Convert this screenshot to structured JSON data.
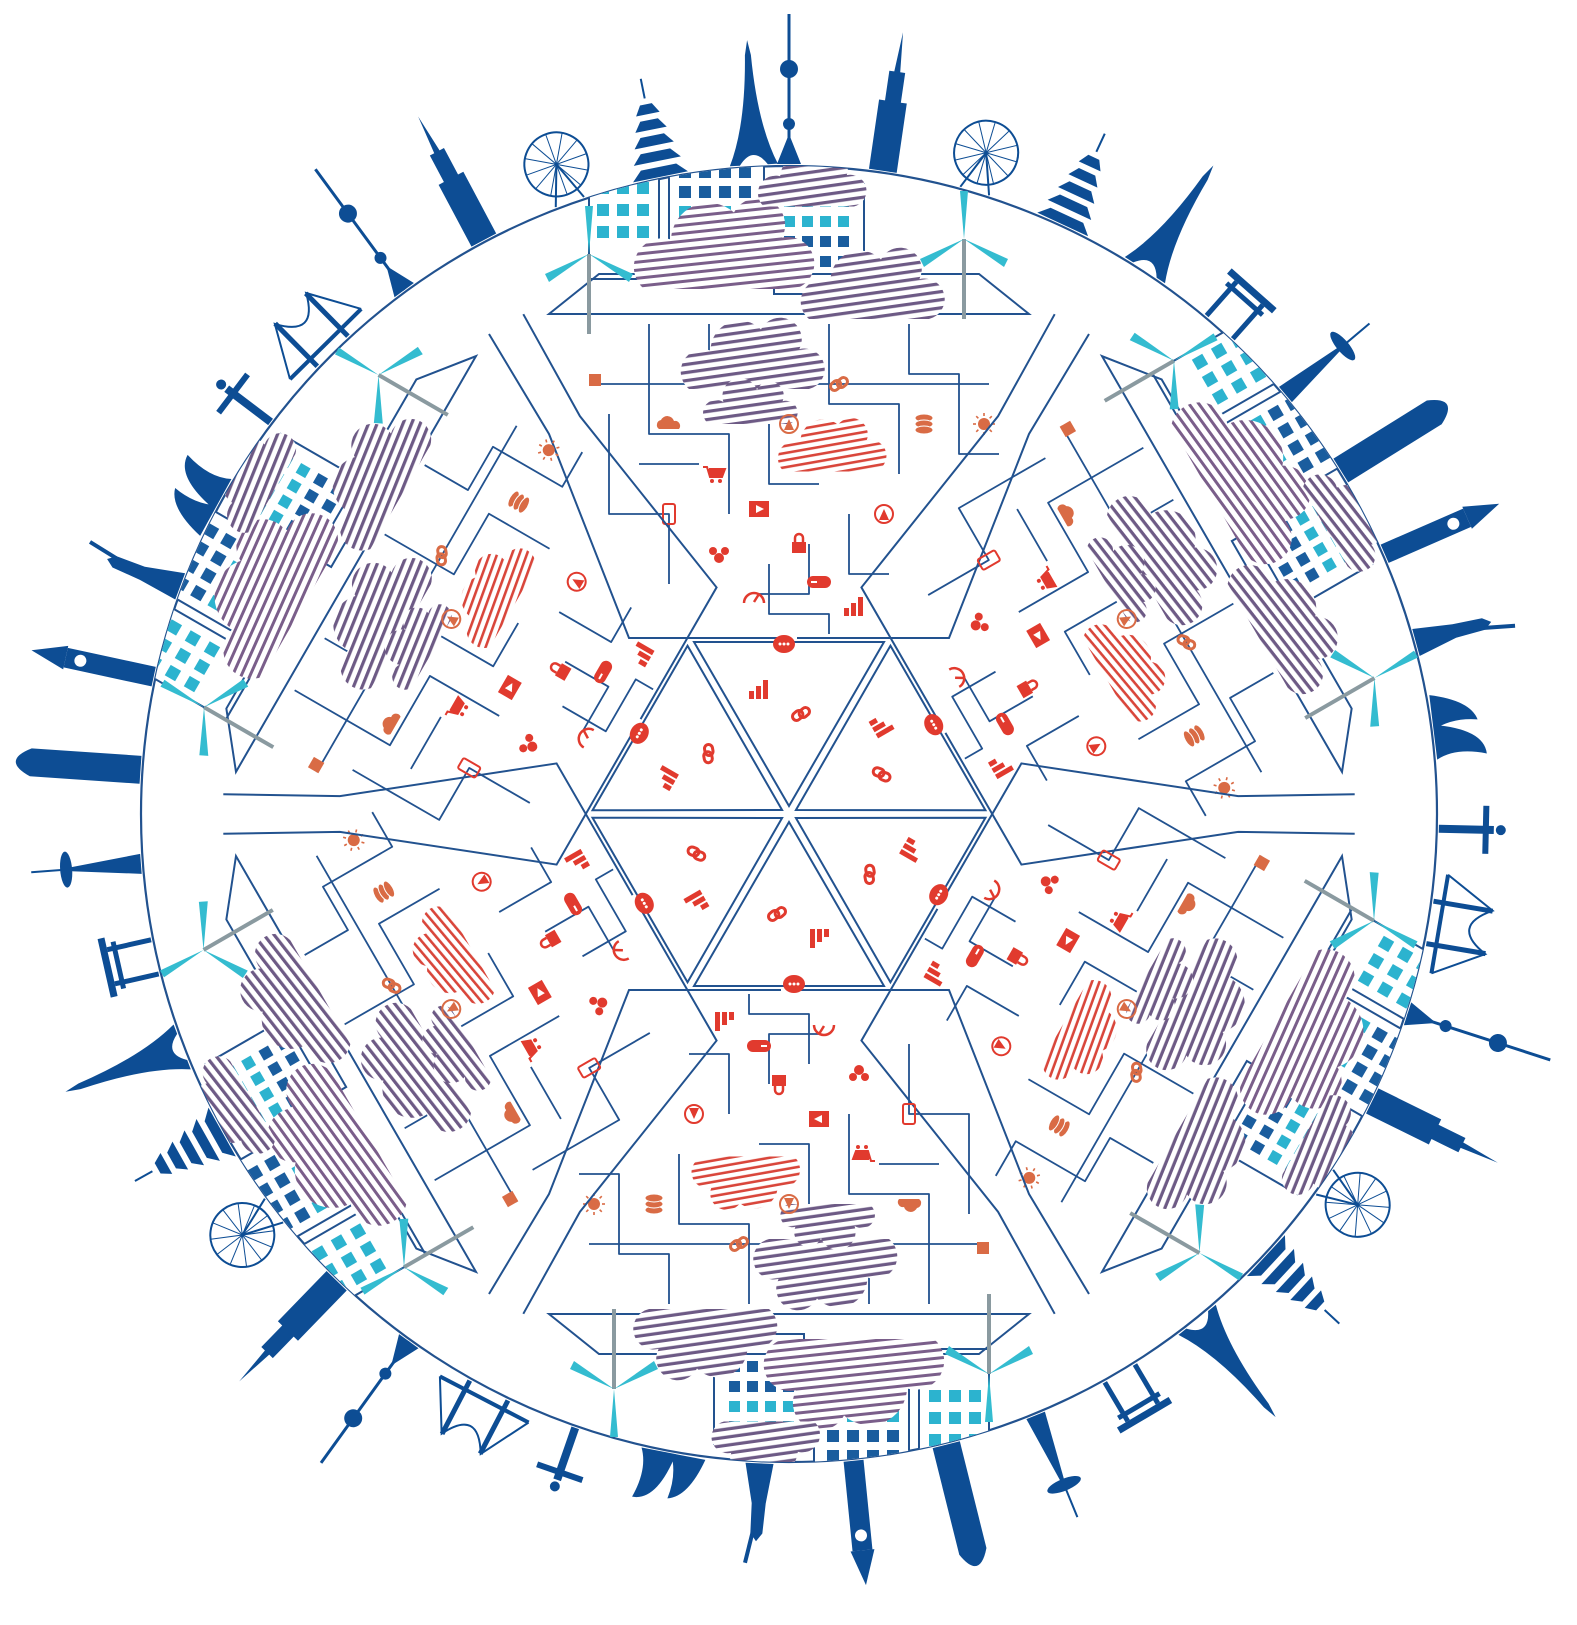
{
  "colors": {
    "navy": "#0d4d94",
    "line_blue": "#22528f",
    "window_dark": "#1a5d9e",
    "window_cyan": "#2cb3cf",
    "cloud_purple": "#6d5a85",
    "cloud_red": "#d9463b",
    "icon_red": "#e13a2e",
    "icon_orange": "#d96b45",
    "turbine": "#34bcd0",
    "turbine_mast": "#8a9aa0"
  },
  "segments": 6,
  "icons": [
    "link-icon",
    "cloud-icon",
    "cart-icon",
    "lock-icon",
    "gamepad-icon",
    "gauge-icon",
    "chat-icon",
    "database-icon",
    "signal-icon",
    "video-icon",
    "users-icon",
    "chart-icon",
    "bulb-icon",
    "phone-icon"
  ],
  "landmarks": [
    "tv-tower",
    "empire-state-building",
    "ferris-wheel",
    "pagoda",
    "eiffel-tower",
    "torii-gate",
    "space-needle",
    "skyscraper",
    "big-ben",
    "statue-of-liberty",
    "opera-house",
    "christ-statue",
    "golden-gate-bridge"
  ]
}
